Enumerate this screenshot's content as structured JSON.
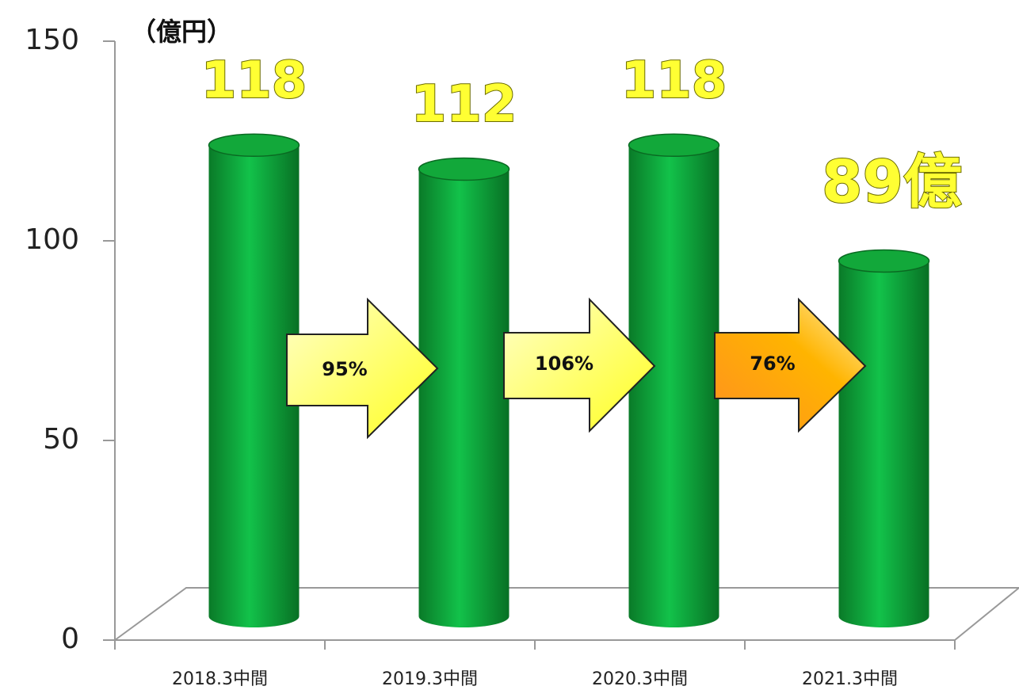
{
  "chart_data": {
    "type": "bar",
    "y_axis_label": "（億円）",
    "categories": [
      "2018.3中間",
      "2019.3中間",
      "2020.3中間",
      "2021.3中間"
    ],
    "values": [
      118,
      112,
      118,
      89
    ],
    "value_labels": [
      "118",
      "112",
      "118",
      "89億"
    ],
    "color": "#12a83a",
    "ylim": [
      0,
      150
    ],
    "yticks": [
      0,
      50,
      100,
      150
    ],
    "annotations": [
      "95%",
      "106%",
      "76%"
    ]
  }
}
